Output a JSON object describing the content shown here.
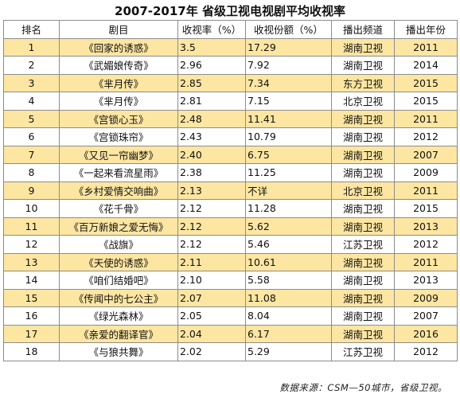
{
  "title": "2007-2017年 省级卫视电视剧平均收视率",
  "headers": [
    "排名",
    "剧目",
    "收视率（%）",
    "收视份额（%）",
    "播出频道",
    "播出年份"
  ],
  "rows": [
    {
      "rank": "1",
      "title": "《回家的诱惑》",
      "rating": "3.5",
      "share": "17.29",
      "channel": "湖南卫视",
      "year": "2011"
    },
    {
      "rank": "2",
      "title": "《武媚娘传奇》",
      "rating": "2.96",
      "share": "7.92",
      "channel": "湖南卫视",
      "year": "2014"
    },
    {
      "rank": "3",
      "title": "《芈月传》",
      "rating": "2.85",
      "share": "7.34",
      "channel": "东方卫视",
      "year": "2015"
    },
    {
      "rank": "4",
      "title": "《芈月传》",
      "rating": "2.81",
      "share": "7.15",
      "channel": "北京卫视",
      "year": "2015"
    },
    {
      "rank": "5",
      "title": "《宫锁心玉》",
      "rating": "2.48",
      "share": "11.41",
      "channel": "湖南卫视",
      "year": "2011"
    },
    {
      "rank": "6",
      "title": "《宫锁珠帘》",
      "rating": "2.43",
      "share": "10.79",
      "channel": "湖南卫视",
      "year": "2012"
    },
    {
      "rank": "7",
      "title": "《又见一帘幽梦》",
      "rating": "2.40",
      "share": "6.75",
      "channel": "湖南卫视",
      "year": "2007"
    },
    {
      "rank": "8",
      "title": "《一起来看流星雨》",
      "rating": "2.38",
      "share": "11.25",
      "channel": "湖南卫视",
      "year": "2009"
    },
    {
      "rank": "9",
      "title": "《乡村爱情交响曲》",
      "rating": "2.13",
      "share": "不详",
      "channel": "北京卫视",
      "year": "2011"
    },
    {
      "rank": "10",
      "title": "《花千骨》",
      "rating": "2.12",
      "share": "11.28",
      "channel": "湖南卫视",
      "year": "2015"
    },
    {
      "rank": "11",
      "title": "《百万新娘之爱无悔》",
      "rating": "2.12",
      "share": "5.62",
      "channel": "湖南卫视",
      "year": "2013"
    },
    {
      "rank": "12",
      "title": "《战旗》",
      "rating": "2.12",
      "share": "5.46",
      "channel": "江苏卫视",
      "year": "2012"
    },
    {
      "rank": "13",
      "title": "《天使的诱惑》",
      "rating": "2.11",
      "share": "10.61",
      "channel": "湖南卫视",
      "year": "2011"
    },
    {
      "rank": "14",
      "title": "《咱们结婚吧》",
      "rating": "2.10",
      "share": "5.58",
      "channel": "湖南卫视",
      "year": "2013"
    },
    {
      "rank": "15",
      "title": "《传闻中的七公主》",
      "rating": "2.07",
      "share": "11.08",
      "channel": "湖南卫视",
      "year": "2009"
    },
    {
      "rank": "16",
      "title": "《绿光森林》",
      "rating": "2.05",
      "share": "8.04",
      "channel": "湖南卫视",
      "year": "2007"
    },
    {
      "rank": "17",
      "title": "《亲爱的翻译官》",
      "rating": "2.04",
      "share": "6.17",
      "channel": "湖南卫视",
      "year": "2016"
    },
    {
      "rank": "18",
      "title": "《与狼共舞》",
      "rating": "2.02",
      "share": "5.29",
      "channel": "江苏卫视",
      "year": "2012"
    }
  ],
  "source": "数据来源：CSM—50城市，省级卫视。",
  "colors": {
    "row_highlight": "#fde6a2",
    "border": "#8c8c8c"
  }
}
